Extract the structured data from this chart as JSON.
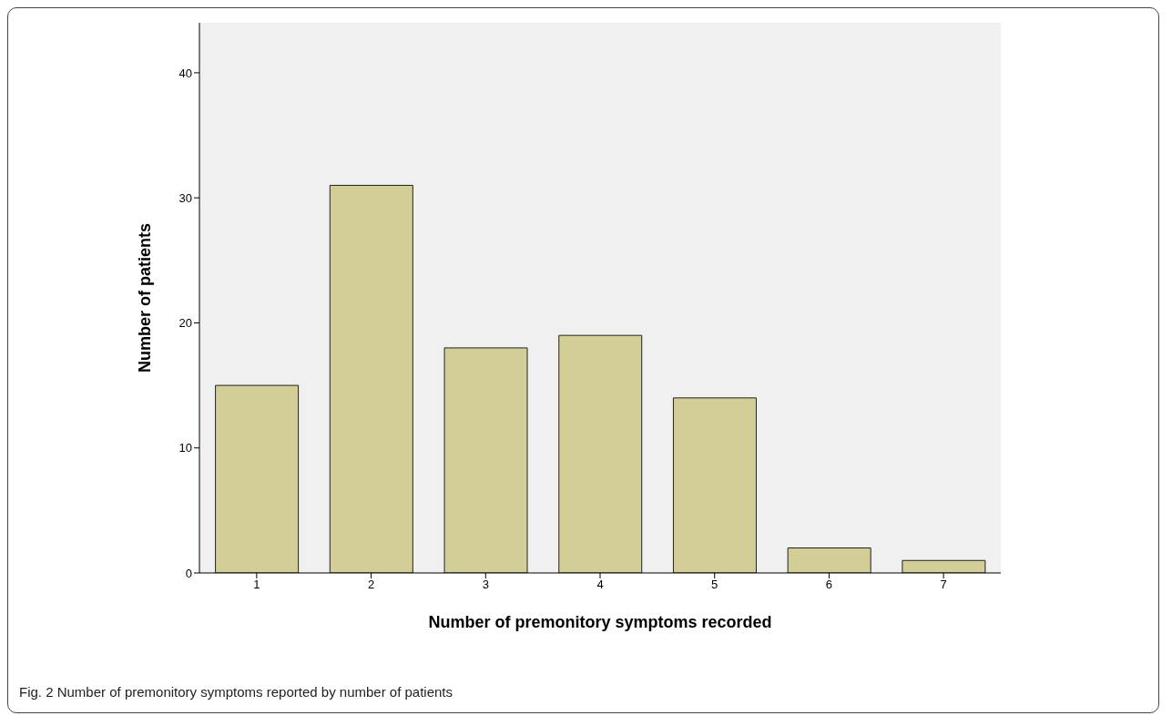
{
  "chart_data": {
    "type": "bar",
    "xlabel": "Number of premonitory symptoms recorded",
    "ylabel": "Number of patients",
    "categories": [
      "1",
      "2",
      "3",
      "4",
      "5",
      "6",
      "7"
    ],
    "values": [
      15,
      31,
      18,
      19,
      14,
      2,
      1
    ],
    "color": "#d3ce97",
    "ylim": [
      0,
      44
    ],
    "yticks": [
      0,
      10,
      20,
      30,
      40
    ],
    "grid": false,
    "annotations": [
      "Fig. 2 Number of premonitory symptoms reported by number of patients"
    ]
  }
}
